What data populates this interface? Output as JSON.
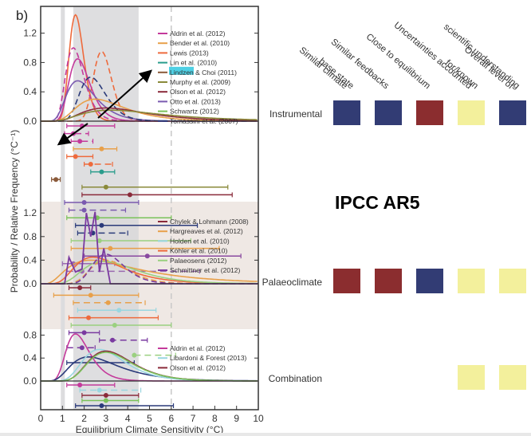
{
  "panel_label": "b)",
  "watermark": "IPCC AR5",
  "chart_data": {
    "type": "line",
    "title": "",
    "xlabel": "Equilibrium Climate Sensitivity (°C)",
    "ylabel": "Probability / Relative Frequency (°C⁻¹)",
    "xlim": [
      0,
      10
    ],
    "xticks": [
      "0",
      "1",
      "2",
      "3",
      "4",
      "5",
      "6",
      "7",
      "8",
      "9",
      "10"
    ],
    "shading": {
      "likely_range": [
        1.5,
        4.5
      ],
      "lower_bound_line": 1.0,
      "dashed_line": 6.0
    },
    "panels": [
      {
        "name": "Instrumental",
        "ylim": [
          0,
          1.5
        ],
        "yticks": [
          "0.0",
          "0.4",
          "0.8",
          "1.2"
        ],
        "legend": [
          {
            "label": "Aldrin et al. (2012)",
            "color": "#c43a9b"
          },
          {
            "label": "Bender et al. (2010)",
            "color": "#e8a04a"
          },
          {
            "label": "Lewis (2013)",
            "color": "#ee6a3c"
          },
          {
            "label": "Lin et al. (2010)",
            "color": "#2a9c8c"
          },
          {
            "label": "Lindzen & Choi (2011)",
            "color": "#8a5a3a",
            "highlight": "Lindzen"
          },
          {
            "label": "Murphy et al. (2009)",
            "color": "#8a8a3a"
          },
          {
            "label": "Olson et al. (2012)",
            "color": "#8a2a3a"
          },
          {
            "label": "Otto et al. (2013)",
            "color": "#7a5ab0"
          },
          {
            "label": "Schwartz (2012)",
            "color": "#7ac25a"
          },
          {
            "label": "Tomassini et al. (2007)",
            "color": "#2a3a7a"
          }
        ],
        "series": [
          {
            "name": "Lewis (2013)",
            "color": "#ee6a3c",
            "style": "solid",
            "mode": 1.6,
            "peak": 1.45,
            "width": 0.28
          },
          {
            "name": "Lewis (2013) alt",
            "color": "#ee6a3c",
            "style": "dashed",
            "mode": 2.8,
            "peak": 0.95,
            "width": 0.35
          },
          {
            "name": "Aldrin et al. (2012)",
            "color": "#c43a9b",
            "style": "solid",
            "mode": 1.7,
            "peak": 0.85,
            "width": 0.4
          },
          {
            "name": "Aldrin et al. (2012) alt",
            "color": "#c43a9b",
            "style": "dashed",
            "mode": 1.5,
            "peak": 1.0,
            "width": 0.35
          },
          {
            "name": "Otto et al. (2013)",
            "color": "#7a5ab0",
            "style": "solid",
            "mode": 1.7,
            "peak": 0.55,
            "width": 0.55
          },
          {
            "name": "Tomassini et al. (2007)",
            "color": "#2a3a7a",
            "style": "dashed",
            "mode": 2.3,
            "peak": 0.6,
            "width": 0.5
          },
          {
            "name": "Bender et al. (2010)",
            "color": "#e8a04a",
            "style": "solid",
            "mode": 2.5,
            "peak": 0.3,
            "width": 0.9
          },
          {
            "name": "Olson et al. (2012)",
            "color": "#8a2a3a",
            "style": "solid",
            "mode": 3.0,
            "peak": 0.18,
            "width": 1.2
          },
          {
            "name": "Murphy et al. (2009)",
            "color": "#8a8a3a",
            "style": "solid",
            "mode": 3.2,
            "peak": 0.15,
            "width": 1.5
          }
        ],
        "ranges": [
          {
            "color": "#c43a9b",
            "style": "solid",
            "lo": 1.2,
            "hi": 3.4,
            "best": 1.9
          },
          {
            "color": "#c43a9b",
            "style": "dashed",
            "lo": 1.1,
            "hi": 2.2,
            "best": 1.5
          },
          {
            "color": "#c43a9b",
            "style": "dashed",
            "lo": 1.4,
            "hi": 2.4,
            "best": 1.8
          },
          {
            "color": "#e8a04a",
            "style": "solid",
            "lo": 1.5,
            "hi": 3.5,
            "best": 2.8
          },
          {
            "color": "#ee6a3c",
            "style": "solid",
            "lo": 1.2,
            "hi": 2.4,
            "best": 1.6
          },
          {
            "color": "#ee6a3c",
            "style": "dashed",
            "lo": 2.0,
            "hi": 3.3,
            "best": 2.3
          },
          {
            "color": "#2a9c8c",
            "style": "solid",
            "lo": 2.3,
            "hi": 3.4,
            "best": 2.8
          },
          {
            "color": "#8a5a3a",
            "style": "solid",
            "lo": 0.5,
            "hi": 0.9,
            "best": 0.7
          },
          {
            "color": "#8a8a3a",
            "style": "solid",
            "lo": 1.9,
            "hi": 8.6,
            "best": 3.0
          },
          {
            "color": "#8a2a3a",
            "style": "solid",
            "lo": 1.9,
            "hi": 8.8,
            "best": 4.1
          },
          {
            "color": "#7a5ab0",
            "style": "solid",
            "lo": 1.1,
            "hi": 4.5,
            "best": 2.0
          },
          {
            "color": "#7a5ab0",
            "style": "dashed",
            "lo": 1.3,
            "hi": 3.9,
            "best": 2.0
          },
          {
            "color": "#7ac25a",
            "style": "solid",
            "lo": 1.2,
            "hi": 6.0,
            "best": 2.6
          },
          {
            "color": "#2a3a7a",
            "style": "solid",
            "lo": 1.6,
            "hi": 7.2,
            "best": 2.8
          },
          {
            "color": "#2a3a7a",
            "style": "dashed",
            "lo": 1.7,
            "hi": 4.0,
            "best": 2.4
          },
          {
            "color": "#9ad080",
            "style": "solid",
            "lo": 1.4,
            "hi": 6.9,
            "best": 2.7
          },
          {
            "color": "#e8a04a",
            "style": "solid",
            "lo": 1.4,
            "hi": 8.2,
            "best": 3.2
          },
          {
            "color": "#8a4aa0",
            "style": "solid",
            "lo": 2.0,
            "hi": 9.2,
            "best": 4.9
          },
          {
            "color": "#9a6ab0",
            "style": "solid",
            "lo": 1.0,
            "hi": 3.4,
            "best": 1.5
          },
          {
            "color": "#9a6ab0",
            "style": "dashed",
            "lo": 1.2,
            "hi": 7.3,
            "best": 1.9
          }
        ]
      },
      {
        "name": "Palaeoclimate",
        "ylim": [
          0,
          1.4
        ],
        "yticks": [
          "0.0",
          "0.4",
          "0.8",
          "1.2"
        ],
        "legend": [
          {
            "label": "Chylek & Lohmann (2008)",
            "color": "#8a2a3a"
          },
          {
            "label": "Hargreaves et al. (2012)",
            "color": "#e8a04a"
          },
          {
            "label": "Holden et al. (2010)",
            "color": "#9ad6e0"
          },
          {
            "label": "Köhler et al. (2010)",
            "color": "#ee6a3c"
          },
          {
            "label": "Palaeosens (2012)",
            "color": "#9ad080"
          },
          {
            "label": "Schmittner et al. (2012)",
            "color": "#7a3aa0"
          }
        ],
        "series": [
          {
            "name": "Hargreaves et al. (2012)",
            "color": "#e8a04a",
            "style": "solid",
            "mode": 2.3,
            "peak": 0.4,
            "width": 1.3
          },
          {
            "name": "Köhler et al. (2010)",
            "color": "#ee6a3c",
            "style": "solid",
            "mode": 2.4,
            "peak": 0.45,
            "width": 0.9
          },
          {
            "name": "Palaeosens (2012)",
            "color": "#9ad080",
            "style": "solid",
            "mode": 2.9,
            "peak": 0.38,
            "width": 1.0
          },
          {
            "name": "Hargreaves et al. (2012) alt",
            "color": "#e8a04a",
            "style": "dashed",
            "mode": 3.0,
            "peak": 0.4,
            "width": 0.7
          },
          {
            "name": "Schmittner et al. (2012) alt",
            "color": "#7a3aa0",
            "style": "dashed",
            "mode": 3.0,
            "peak": 0.5,
            "width": 0.6
          }
        ],
        "schmittner_peaks": [
          [
            1.3,
            0.45
          ],
          [
            2.1,
            1.2
          ],
          [
            2.5,
            1.22
          ],
          [
            2.9,
            0.6
          ]
        ],
        "ranges": [
          {
            "color": "#8a2a3a",
            "style": "solid",
            "lo": 1.3,
            "hi": 2.3,
            "best": 1.8
          },
          {
            "color": "#e8a04a",
            "style": "solid",
            "lo": 0.6,
            "hi": 4.5,
            "best": 2.3
          },
          {
            "color": "#e8a04a",
            "style": "dashed",
            "lo": 1.5,
            "hi": 4.8,
            "best": 3.1
          },
          {
            "color": "#9ad6e0",
            "style": "solid",
            "lo": 1.7,
            "hi": 5.3,
            "best": 3.6
          },
          {
            "color": "#ee6a3c",
            "style": "solid",
            "lo": 1.3,
            "hi": 5.4,
            "best": 2.2
          },
          {
            "color": "#9ad080",
            "style": "solid",
            "lo": 1.4,
            "hi": 6.0,
            "best": 3.4
          },
          {
            "color": "#7a3aa0",
            "style": "solid",
            "lo": 1.3,
            "hi": 2.7,
            "best": 2.0
          },
          {
            "color": "#7a3aa0",
            "style": "dashed",
            "lo": 2.7,
            "hi": 4.9,
            "best": 3.3
          },
          {
            "color": "#7a3aa0",
            "style": "dashed",
            "lo": 1.2,
            "hi": 2.5,
            "best": 1.9
          },
          {
            "color": "#9ad080",
            "style": "dashed",
            "lo": 4.3,
            "hi": 6.2,
            "best": 4.3
          },
          {
            "color": "#2a3a7a",
            "style": "solid",
            "lo": 1.2,
            "hi": 4.3,
            "best": null
          }
        ]
      },
      {
        "name": "Combination",
        "ylim": [
          0,
          0.95
        ],
        "yticks": [
          "0.0",
          "0.4",
          "0.8"
        ],
        "legend": [
          {
            "label": "Aldrin et al. (2012)",
            "color": "#c43a9b"
          },
          {
            "label": "Libardoni & Forest (2013)",
            "color": "#9ad6e0"
          },
          {
            "label": "Olson et al. (2012)",
            "color": "#8a2a3a"
          }
        ],
        "series": [
          {
            "name": "Aldrin et al. (2012)",
            "color": "#c43a9b",
            "style": "solid",
            "mode": 1.6,
            "peak": 0.82,
            "width": 0.45
          },
          {
            "name": "Tomassini",
            "color": "#2a3a7a",
            "style": "solid",
            "mode": 2.2,
            "peak": 0.42,
            "width": 0.9
          },
          {
            "name": "Libardoni & Forest (2013)",
            "color": "#9ad6e0",
            "style": "solid",
            "mode": 2.7,
            "peak": 0.55,
            "width": 0.8
          },
          {
            "name": "Olson et al. (2012)",
            "color": "#8a2a3a",
            "style": "solid",
            "mode": 3.0,
            "peak": 0.52,
            "width": 0.85
          },
          {
            "name": "Schwartz green",
            "color": "#7ac25a",
            "style": "solid",
            "mode": 3.0,
            "peak": 0.5,
            "width": 0.85
          }
        ],
        "ranges": [
          {
            "color": "#c43a9b",
            "style": "solid",
            "lo": 1.2,
            "hi": 3.4,
            "best": 1.8
          },
          {
            "color": "#9ad6e0",
            "style": "dashed",
            "lo": 1.8,
            "hi": 4.6,
            "best": 2.7
          },
          {
            "color": "#8a2a3a",
            "style": "solid",
            "lo": 1.9,
            "hi": 4.5,
            "best": 3.0
          },
          {
            "color": "#7ac25a",
            "style": "solid",
            "lo": 1.9,
            "hi": 4.5,
            "best": 3.0
          },
          {
            "color": "#2a3a7a",
            "style": "solid",
            "lo": 1.6,
            "hi": 6.1,
            "best": 2.8
          }
        ]
      }
    ]
  },
  "confidence_table": {
    "columns": [
      "Similar climate base state",
      "Similar feedbacks",
      "Close to equilibrium",
      "Uncertainties accounted for/known",
      "Overall level of scientific understanding"
    ],
    "column_lines": [
      [
        "Similar climate",
        "base state"
      ],
      [
        "Similar feedbacks"
      ],
      [
        "Close to equilibrium"
      ],
      [
        "Uncertainties accounted",
        "for/known"
      ],
      [
        "Overall level of",
        "scientific understanding"
      ]
    ],
    "legend_colors": {
      "high": "#323c74",
      "low": "#8b2d2f",
      "medium": "#f3f09c"
    },
    "rows": [
      {
        "label": "Instrumental",
        "cells": [
          "high",
          "high",
          "low",
          "medium",
          "high"
        ]
      },
      {
        "label": "Palaeoclimate",
        "cells": [
          "low",
          "low",
          "high",
          "medium",
          "medium"
        ]
      },
      {
        "label": "Combination",
        "cells": [
          null,
          null,
          null,
          "medium",
          "medium"
        ]
      }
    ]
  }
}
